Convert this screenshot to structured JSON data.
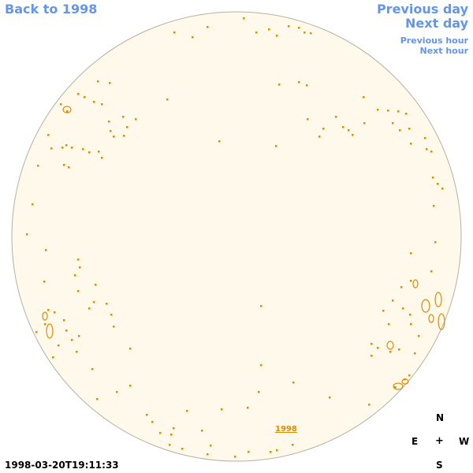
{
  "nav": {
    "back_label": "Back to 1998",
    "prev_day_label": "Previous day",
    "next_day_label": "Next day",
    "prev_hour_label": "Previous hour",
    "next_hour_label": "Next hour"
  },
  "timestamp": "1998-03-20T19:11:33",
  "compass": {
    "north": "N",
    "east": "E",
    "center": "+",
    "west": "W",
    "south": "S"
  },
  "year_link": "1998",
  "colors": {
    "link": "#6495ED",
    "disk_fill": "#FFF9EC",
    "disk_border": "#B8B0A0",
    "contour": "#E08A00"
  },
  "icons": {
    "sun_disk": "sun-disk-icon",
    "compass": "compass-icon"
  }
}
